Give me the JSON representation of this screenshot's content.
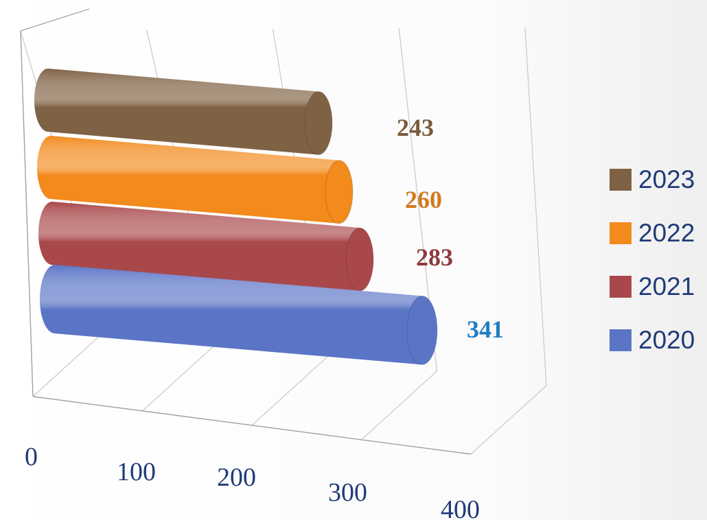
{
  "chart_data": {
    "type": "bar",
    "orientation": "horizontal",
    "style": "3d-cylinder",
    "title": "",
    "xlabel": "",
    "ylabel": "",
    "xlim": [
      0,
      400
    ],
    "x_ticks": [
      "0",
      "100",
      "200",
      "300",
      "400"
    ],
    "grid": true,
    "legend_position": "right",
    "series": [
      {
        "name": "2023",
        "value": 243,
        "label": "243",
        "color": "#7f6143",
        "label_color": "#7a5a3a"
      },
      {
        "name": "2022",
        "value": 260,
        "label": "260",
        "color": "#f28a1c",
        "label_color": "#d27a1e"
      },
      {
        "name": "2021",
        "value": 283,
        "label": "283",
        "color": "#a9484b",
        "label_color": "#8e3a3e"
      },
      {
        "name": "2020",
        "value": 341,
        "label": "341",
        "color": "#5b75c6",
        "label_color": "#1f7dc4"
      }
    ]
  }
}
